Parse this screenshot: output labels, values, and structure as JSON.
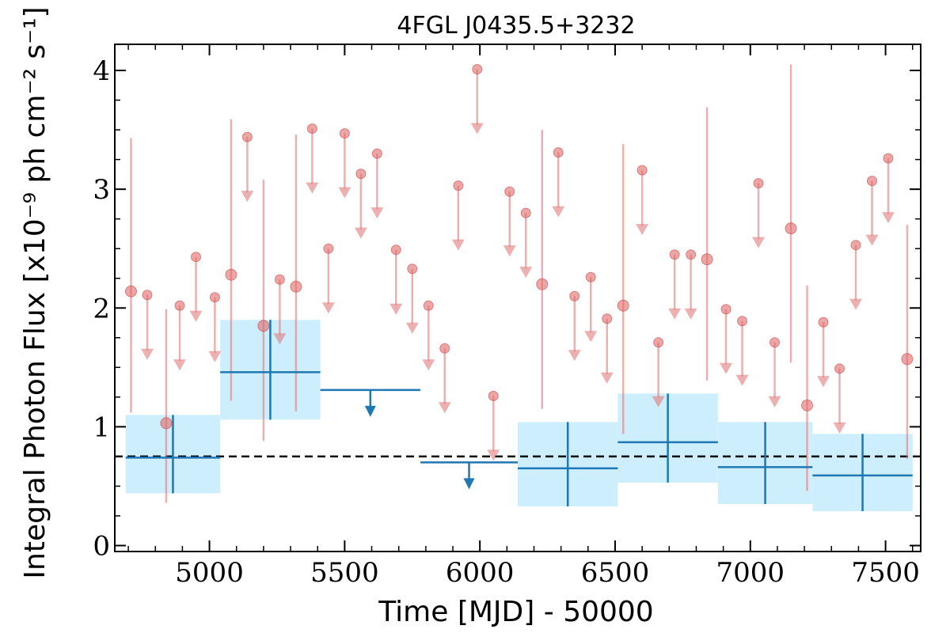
{
  "chart_data": {
    "type": "scatter",
    "title": "4FGL J0435.5+3232",
    "xlabel": "Time [MJD] - 50000",
    "ylabel": "Integral Photon Flux [x10⁻⁹ ph cm⁻² s⁻¹]",
    "xlim": [
      4650,
      7630
    ],
    "ylim": [
      -0.05,
      4.22
    ],
    "x_ticks": [
      5000,
      5500,
      6000,
      6500,
      7000,
      7500
    ],
    "y_ticks": [
      0,
      1,
      2,
      3,
      4
    ],
    "grid": false,
    "mean_flux": 0.75,
    "series": [
      {
        "kind": "binned_detections",
        "color": "#1f77b4",
        "band_color": "#cdeefc",
        "points": [
          {
            "x0": 4690,
            "x1": 5040,
            "y": 0.74,
            "ylo": 0.44,
            "yhi": 1.1,
            "ylo_band": 0.44,
            "yhi_band": 1.1
          },
          {
            "x0": 5040,
            "x1": 5410,
            "y": 1.46,
            "ylo": 1.06,
            "yhi": 1.9,
            "ylo_band": 1.06,
            "yhi_band": 1.9
          },
          {
            "x0": 6140,
            "x1": 6510,
            "y": 0.65,
            "ylo": 0.33,
            "yhi": 1.04,
            "ylo_band": 0.33,
            "yhi_band": 1.04
          },
          {
            "x0": 6510,
            "x1": 6880,
            "y": 0.87,
            "ylo": 0.53,
            "yhi": 1.28,
            "ylo_band": 0.53,
            "yhi_band": 1.28
          },
          {
            "x0": 6880,
            "x1": 7230,
            "y": 0.66,
            "ylo": 0.35,
            "yhi": 1.04,
            "ylo_band": 0.35,
            "yhi_band": 1.04
          },
          {
            "x0": 7230,
            "x1": 7600,
            "y": 0.59,
            "ylo": 0.29,
            "yhi": 0.94,
            "ylo_band": 0.29,
            "yhi_band": 0.94
          }
        ]
      },
      {
        "kind": "binned_upper_limits",
        "color": "#1f77b4",
        "points": [
          {
            "x0": 5410,
            "x1": 5780,
            "y": 1.31
          },
          {
            "x0": 5780,
            "x1": 6140,
            "y": 0.7
          }
        ]
      },
      {
        "kind": "fine_detections",
        "color": "#e06b6b",
        "points": [
          {
            "x": 4710,
            "y": 2.14,
            "ylo": 1.12,
            "yhi": 3.43
          },
          {
            "x": 4840,
            "y": 1.03,
            "ylo": 0.36,
            "yhi": 1.99
          },
          {
            "x": 5080,
            "y": 2.28,
            "ylo": 1.22,
            "yhi": 3.59
          },
          {
            "x": 5200,
            "y": 1.85,
            "ylo": 0.88,
            "yhi": 3.08
          },
          {
            "x": 5320,
            "y": 2.18,
            "ylo": 1.13,
            "yhi": 3.46
          },
          {
            "x": 6230,
            "y": 2.2,
            "ylo": 1.15,
            "yhi": 3.5
          },
          {
            "x": 6530,
            "y": 2.02,
            "ylo": 0.94,
            "yhi": 3.38
          },
          {
            "x": 6840,
            "y": 2.41,
            "ylo": 1.39,
            "yhi": 3.69
          },
          {
            "x": 7150,
            "y": 2.67,
            "ylo": 1.54,
            "yhi": 4.05
          },
          {
            "x": 7210,
            "y": 1.18,
            "ylo": 0.46,
            "yhi": 2.19
          },
          {
            "x": 7580,
            "y": 1.57,
            "ylo": 0.73,
            "yhi": 2.7
          }
        ]
      },
      {
        "kind": "fine_upper_limits",
        "color": "#e07b7b",
        "points": [
          {
            "x": 4770,
            "y": 2.11
          },
          {
            "x": 4890,
            "y": 2.02
          },
          {
            "x": 4950,
            "y": 2.43
          },
          {
            "x": 5020,
            "y": 2.09
          },
          {
            "x": 5140,
            "y": 3.44
          },
          {
            "x": 5260,
            "y": 2.24
          },
          {
            "x": 5380,
            "y": 3.51
          },
          {
            "x": 5440,
            "y": 2.5
          },
          {
            "x": 5500,
            "y": 3.47
          },
          {
            "x": 5560,
            "y": 3.13
          },
          {
            "x": 5620,
            "y": 3.3
          },
          {
            "x": 5690,
            "y": 2.49
          },
          {
            "x": 5750,
            "y": 2.33
          },
          {
            "x": 5810,
            "y": 2.02
          },
          {
            "x": 5870,
            "y": 1.66
          },
          {
            "x": 5920,
            "y": 3.03
          },
          {
            "x": 5990,
            "y": 4.01
          },
          {
            "x": 6050,
            "y": 1.26
          },
          {
            "x": 6110,
            "y": 2.98
          },
          {
            "x": 6170,
            "y": 2.8
          },
          {
            "x": 6290,
            "y": 3.31
          },
          {
            "x": 6350,
            "y": 2.1
          },
          {
            "x": 6410,
            "y": 2.26
          },
          {
            "x": 6470,
            "y": 1.91
          },
          {
            "x": 6600,
            "y": 3.16
          },
          {
            "x": 6660,
            "y": 1.71
          },
          {
            "x": 6720,
            "y": 2.45
          },
          {
            "x": 6780,
            "y": 2.45
          },
          {
            "x": 6910,
            "y": 1.99
          },
          {
            "x": 6970,
            "y": 1.89
          },
          {
            "x": 7030,
            "y": 3.05
          },
          {
            "x": 7090,
            "y": 1.71
          },
          {
            "x": 7270,
            "y": 1.88
          },
          {
            "x": 7330,
            "y": 1.49
          },
          {
            "x": 7390,
            "y": 2.53
          },
          {
            "x": 7450,
            "y": 3.07
          },
          {
            "x": 7510,
            "y": 3.26
          }
        ]
      }
    ]
  }
}
